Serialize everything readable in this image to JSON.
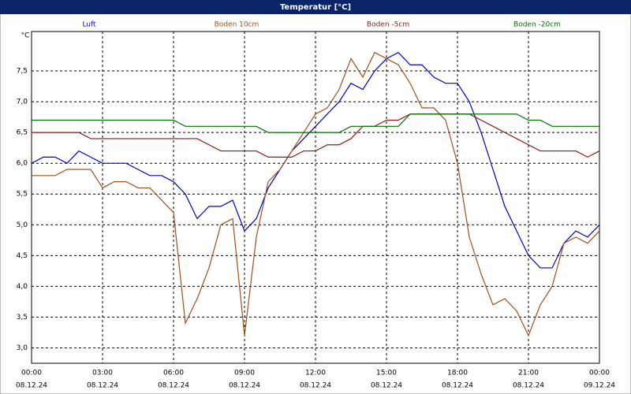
{
  "chart_data": {
    "type": "line",
    "title": "Temperatur [°C]",
    "y_label": "°C",
    "x": [
      0,
      0.5,
      1,
      1.5,
      2,
      2.5,
      3,
      3.5,
      4,
      4.5,
      5,
      5.5,
      6,
      6.5,
      7,
      7.5,
      8,
      8.5,
      9,
      9.5,
      10,
      10.5,
      11,
      11.5,
      12,
      12.5,
      13,
      13.5,
      14,
      14.5,
      15,
      15.5,
      16,
      16.5,
      17,
      17.5,
      18,
      18.5,
      19,
      19.5,
      20,
      20.5,
      21,
      21.5,
      22,
      22.5,
      23,
      23.5,
      24
    ],
    "series": [
      {
        "name": "Luft",
        "color": "#0000cc",
        "values": [
          6.0,
          6.1,
          6.1,
          6.0,
          6.2,
          6.1,
          6.0,
          6.0,
          6.0,
          5.9,
          5.8,
          5.8,
          5.7,
          5.5,
          5.1,
          5.3,
          5.3,
          5.4,
          4.9,
          5.1,
          5.6,
          5.9,
          6.2,
          6.4,
          6.6,
          6.8,
          7.0,
          7.3,
          7.2,
          7.5,
          7.7,
          7.8,
          7.6,
          7.6,
          7.4,
          7.3,
          7.3,
          7.0,
          6.5,
          5.9,
          5.3,
          4.9,
          4.5,
          4.3,
          4.3,
          4.7,
          4.9,
          4.8,
          5.0
        ]
      },
      {
        "name": "Boden 10cm",
        "color": "#a0501e",
        "values": [
          5.8,
          5.8,
          5.8,
          5.9,
          5.9,
          5.9,
          5.6,
          5.7,
          5.7,
          5.6,
          5.6,
          5.4,
          5.2,
          3.4,
          3.8,
          4.3,
          5.0,
          5.1,
          3.2,
          4.8,
          5.7,
          5.9,
          6.2,
          6.5,
          6.8,
          6.9,
          7.2,
          7.7,
          7.4,
          7.8,
          7.7,
          7.6,
          7.3,
          6.9,
          6.9,
          6.7,
          6.0,
          4.8,
          4.2,
          3.7,
          3.8,
          3.6,
          3.2,
          3.7,
          4.0,
          4.7,
          4.8,
          4.7,
          4.9
        ]
      },
      {
        "name": "Boden -5cm",
        "color": "#8b1a1a",
        "values": [
          6.5,
          6.5,
          6.5,
          6.5,
          6.5,
          6.4,
          6.4,
          6.4,
          6.4,
          6.4,
          6.4,
          6.4,
          6.4,
          6.4,
          6.4,
          6.3,
          6.2,
          6.2,
          6.2,
          6.2,
          6.1,
          6.1,
          6.1,
          6.2,
          6.2,
          6.3,
          6.3,
          6.4,
          6.6,
          6.6,
          6.7,
          6.7,
          6.8,
          6.8,
          6.8,
          6.8,
          6.8,
          6.8,
          6.7,
          6.6,
          6.5,
          6.4,
          6.3,
          6.2,
          6.2,
          6.2,
          6.2,
          6.1,
          6.2
        ]
      },
      {
        "name": "Boden -20cm",
        "color": "#007000",
        "values": [
          6.7,
          6.7,
          6.7,
          6.7,
          6.7,
          6.7,
          6.7,
          6.7,
          6.7,
          6.7,
          6.7,
          6.7,
          6.7,
          6.6,
          6.6,
          6.6,
          6.6,
          6.6,
          6.6,
          6.6,
          6.5,
          6.5,
          6.5,
          6.5,
          6.5,
          6.5,
          6.5,
          6.6,
          6.6,
          6.6,
          6.6,
          6.6,
          6.8,
          6.8,
          6.8,
          6.8,
          6.8,
          6.8,
          6.8,
          6.8,
          6.8,
          6.8,
          6.7,
          6.7,
          6.6,
          6.6,
          6.6,
          6.6,
          6.6
        ]
      }
    ],
    "xlim": [
      0,
      24
    ],
    "xticks": [
      {
        "value": 0,
        "label": "00:00"
      },
      {
        "value": 3,
        "label": "03:00"
      },
      {
        "value": 6,
        "label": "06:00"
      },
      {
        "value": 9,
        "label": "09:00"
      },
      {
        "value": 12,
        "label": "12:00"
      },
      {
        "value": 15,
        "label": "15:00"
      },
      {
        "value": 18,
        "label": "18:00"
      },
      {
        "value": 21,
        "label": "21:00"
      },
      {
        "value": 24,
        "label": "00:00"
      }
    ],
    "xtick_dates": [
      "08.12.24",
      "08.12.24",
      "08.12.24",
      "08.12.24",
      "08.12.24",
      "08.12.24",
      "08.12.24",
      "08.12.24",
      "09.12.24"
    ],
    "ylim": [
      2.75,
      8.0
    ],
    "yticks": [
      {
        "value": 3,
        "label": "3,0"
      },
      {
        "value": 3.5,
        "label": "3,5"
      },
      {
        "value": 4,
        "label": "4,0"
      },
      {
        "value": 4.5,
        "label": "4,5"
      },
      {
        "value": 5,
        "label": "5,0"
      },
      {
        "value": 5.5,
        "label": "5,5"
      },
      {
        "value": 6,
        "label": "6,0"
      },
      {
        "value": 6.5,
        "label": "6,5"
      },
      {
        "value": 7,
        "label": "7,0"
      },
      {
        "value": 7.5,
        "label": "7,5"
      }
    ],
    "grid": true
  }
}
